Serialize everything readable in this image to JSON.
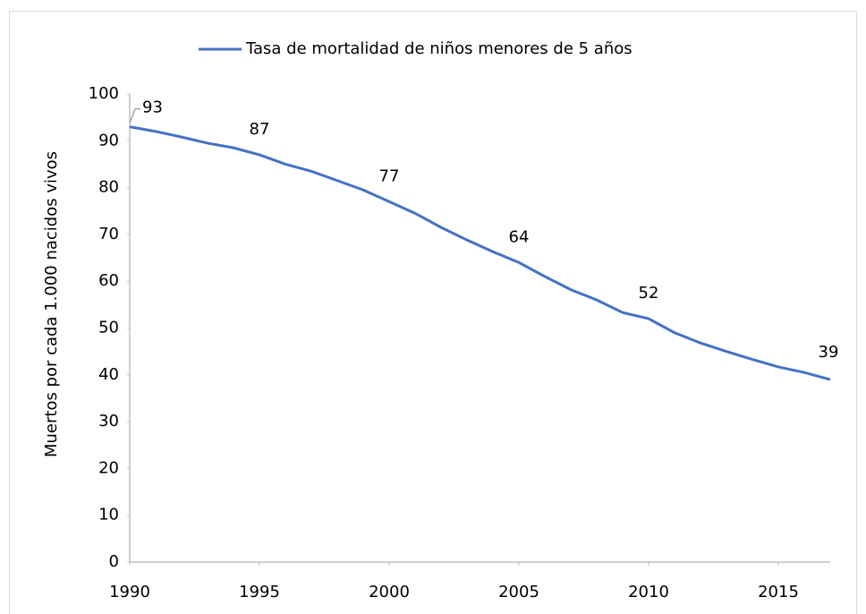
{
  "chart_data": {
    "type": "line",
    "y_axis_label": "Muertos por cada 1.000 nacidos vivos",
    "x": [
      1990,
      1991,
      1992,
      1993,
      1994,
      1995,
      1996,
      1997,
      1998,
      1999,
      2000,
      2001,
      2002,
      2003,
      2004,
      2005,
      2006,
      2007,
      2008,
      2009,
      2010,
      2011,
      2012,
      2013,
      2014,
      2015,
      2016,
      2017
    ],
    "series": [
      {
        "name": "Tasa de mortalidad de niños menores de 5 años",
        "color": "#4472c4",
        "values": [
          93,
          92,
          90.8,
          89.5,
          88.5,
          87,
          85,
          83.5,
          81.5,
          79.5,
          77,
          74.5,
          71.5,
          68.8,
          66.3,
          64,
          61,
          58.2,
          56,
          53.3,
          52,
          49,
          46.8,
          45,
          43.3,
          41.7,
          40.5,
          39
        ],
        "value_labels": [
          "93",
          null,
          null,
          null,
          null,
          "87",
          null,
          null,
          null,
          null,
          "77",
          null,
          null,
          null,
          null,
          "64",
          null,
          null,
          null,
          null,
          "52",
          null,
          null,
          null,
          null,
          null,
          null,
          "39"
        ]
      }
    ],
    "xlim": [
      1990,
      2017
    ],
    "xticks": [
      1990,
      1995,
      2000,
      2005,
      2010,
      2015
    ],
    "ylim": [
      0,
      100
    ],
    "yticks": [
      0,
      10,
      20,
      30,
      40,
      50,
      60,
      70,
      80,
      90,
      100
    ],
    "legend": "top"
  }
}
